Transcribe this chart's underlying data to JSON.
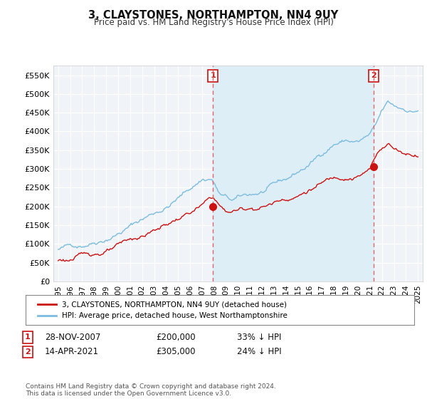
{
  "title": "3, CLAYSTONES, NORTHAMPTON, NN4 9UY",
  "subtitle": "Price paid vs. HM Land Registry's House Price Index (HPI)",
  "ylabel_ticks": [
    "£0",
    "£50K",
    "£100K",
    "£150K",
    "£200K",
    "£250K",
    "£300K",
    "£350K",
    "£400K",
    "£450K",
    "£500K",
    "£550K"
  ],
  "ytick_values": [
    0,
    50000,
    100000,
    150000,
    200000,
    250000,
    300000,
    350000,
    400000,
    450000,
    500000,
    550000
  ],
  "ylim": [
    0,
    575000
  ],
  "hpi_color": "#7bbce0",
  "price_color": "#cc1111",
  "vline_color": "#dd6666",
  "shade_color": "#deeef7",
  "sale1_date_x": 2007.91,
  "sale1_price": 200000,
  "sale1_label": "1",
  "sale2_date_x": 2021.29,
  "sale2_price": 305000,
  "sale2_label": "2",
  "legend_label1": "3, CLAYSTONES, NORTHAMPTON, NN4 9UY (detached house)",
  "legend_label2": "HPI: Average price, detached house, West Northamptonshire",
  "table_row1": [
    "1",
    "28-NOV-2007",
    "£200,000",
    "33% ↓ HPI"
  ],
  "table_row2": [
    "2",
    "14-APR-2021",
    "£305,000",
    "24% ↓ HPI"
  ],
  "footer": "Contains HM Land Registry data © Crown copyright and database right 2024.\nThis data is licensed under the Open Government Licence v3.0.",
  "bg_color": "#ffffff",
  "plot_bg_color": "#f0f4f8",
  "grid_color": "#ffffff",
  "xmin": 1994.6,
  "xmax": 2025.4
}
